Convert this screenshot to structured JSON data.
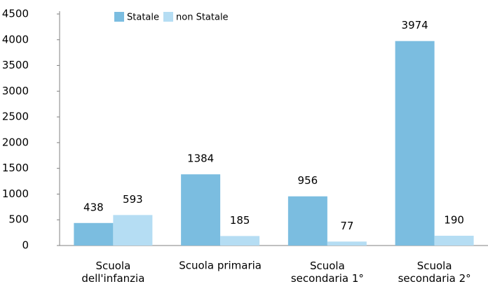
{
  "chart_data": {
    "type": "bar",
    "categories": [
      "Scuola\ndell'infanzia",
      "Scuola primaria",
      "Scuola\nsecondaria 1°",
      "Scuola\nsecondaria 2°"
    ],
    "series": [
      {
        "name": "Statale",
        "color": "#7bbde0",
        "values": [
          438,
          1384,
          956,
          3974
        ]
      },
      {
        "name": "non Statale",
        "color": "#b5ddf3",
        "values": [
          593,
          185,
          77,
          190
        ]
      }
    ],
    "ylim": [
      0,
      4500
    ],
    "yticks": [
      0,
      500,
      1000,
      1500,
      2000,
      2500,
      3000,
      3500,
      4000,
      4500
    ],
    "grid": false,
    "legend": "top"
  }
}
